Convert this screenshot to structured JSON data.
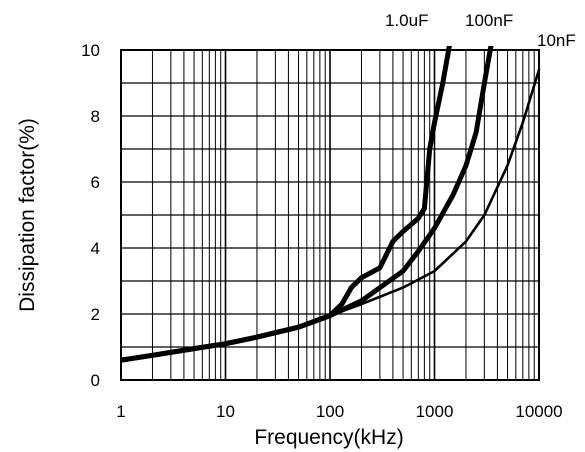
{
  "chart_data": {
    "type": "line",
    "title": "",
    "xlabel": "Frequency(kHz)",
    "ylabel": "Dissipation factor(%)",
    "x_scale": "log",
    "xlim": [
      1,
      10000
    ],
    "ylim": [
      0,
      10
    ],
    "grid": true,
    "x_ticks": [
      {
        "value": 1,
        "label": "1"
      },
      {
        "value": 10,
        "label": "10"
      },
      {
        "value": 100,
        "label": "100"
      },
      {
        "value": 1000,
        "label": "1000"
      },
      {
        "value": 10000,
        "label": "10000"
      }
    ],
    "y_ticks": [
      {
        "value": 0,
        "label": "0"
      },
      {
        "value": 2,
        "label": "2"
      },
      {
        "value": 4,
        "label": "4"
      },
      {
        "value": 6,
        "label": "6"
      },
      {
        "value": 8,
        "label": "8"
      },
      {
        "value": 10,
        "label": "10"
      }
    ],
    "series": [
      {
        "name": "1.0uF",
        "color": "#000000",
        "weight": "heavy",
        "points": [
          [
            1,
            0.6
          ],
          [
            2,
            0.75
          ],
          [
            5,
            0.95
          ],
          [
            10,
            1.1
          ],
          [
            20,
            1.3
          ],
          [
            50,
            1.6
          ],
          [
            100,
            1.95
          ],
          [
            130,
            2.3
          ],
          [
            160,
            2.8
          ],
          [
            200,
            3.1
          ],
          [
            300,
            3.4
          ],
          [
            400,
            4.2
          ],
          [
            500,
            4.5
          ],
          [
            700,
            4.9
          ],
          [
            800,
            5.2
          ],
          [
            900,
            7.0
          ],
          [
            1000,
            7.8
          ],
          [
            1200,
            9.0
          ],
          [
            1400,
            10.2
          ]
        ]
      },
      {
        "name": "100nF",
        "color": "#000000",
        "weight": "heavy",
        "points": [
          [
            1,
            0.6
          ],
          [
            2,
            0.75
          ],
          [
            5,
            0.95
          ],
          [
            10,
            1.1
          ],
          [
            20,
            1.3
          ],
          [
            50,
            1.6
          ],
          [
            100,
            1.95
          ],
          [
            200,
            2.4
          ],
          [
            300,
            2.8
          ],
          [
            500,
            3.3
          ],
          [
            700,
            3.9
          ],
          [
            1000,
            4.6
          ],
          [
            1500,
            5.6
          ],
          [
            2000,
            6.5
          ],
          [
            2500,
            7.5
          ],
          [
            3000,
            9.0
          ],
          [
            3500,
            10.2
          ]
        ]
      },
      {
        "name": "10nF",
        "color": "#000000",
        "weight": "thin",
        "points": [
          [
            1,
            0.6
          ],
          [
            2,
            0.75
          ],
          [
            5,
            0.95
          ],
          [
            10,
            1.1
          ],
          [
            20,
            1.3
          ],
          [
            50,
            1.6
          ],
          [
            100,
            1.95
          ],
          [
            200,
            2.3
          ],
          [
            500,
            2.8
          ],
          [
            1000,
            3.3
          ],
          [
            2000,
            4.2
          ],
          [
            3000,
            5.0
          ],
          [
            5000,
            6.5
          ],
          [
            7000,
            7.8
          ],
          [
            10000,
            9.4
          ]
        ]
      }
    ]
  }
}
